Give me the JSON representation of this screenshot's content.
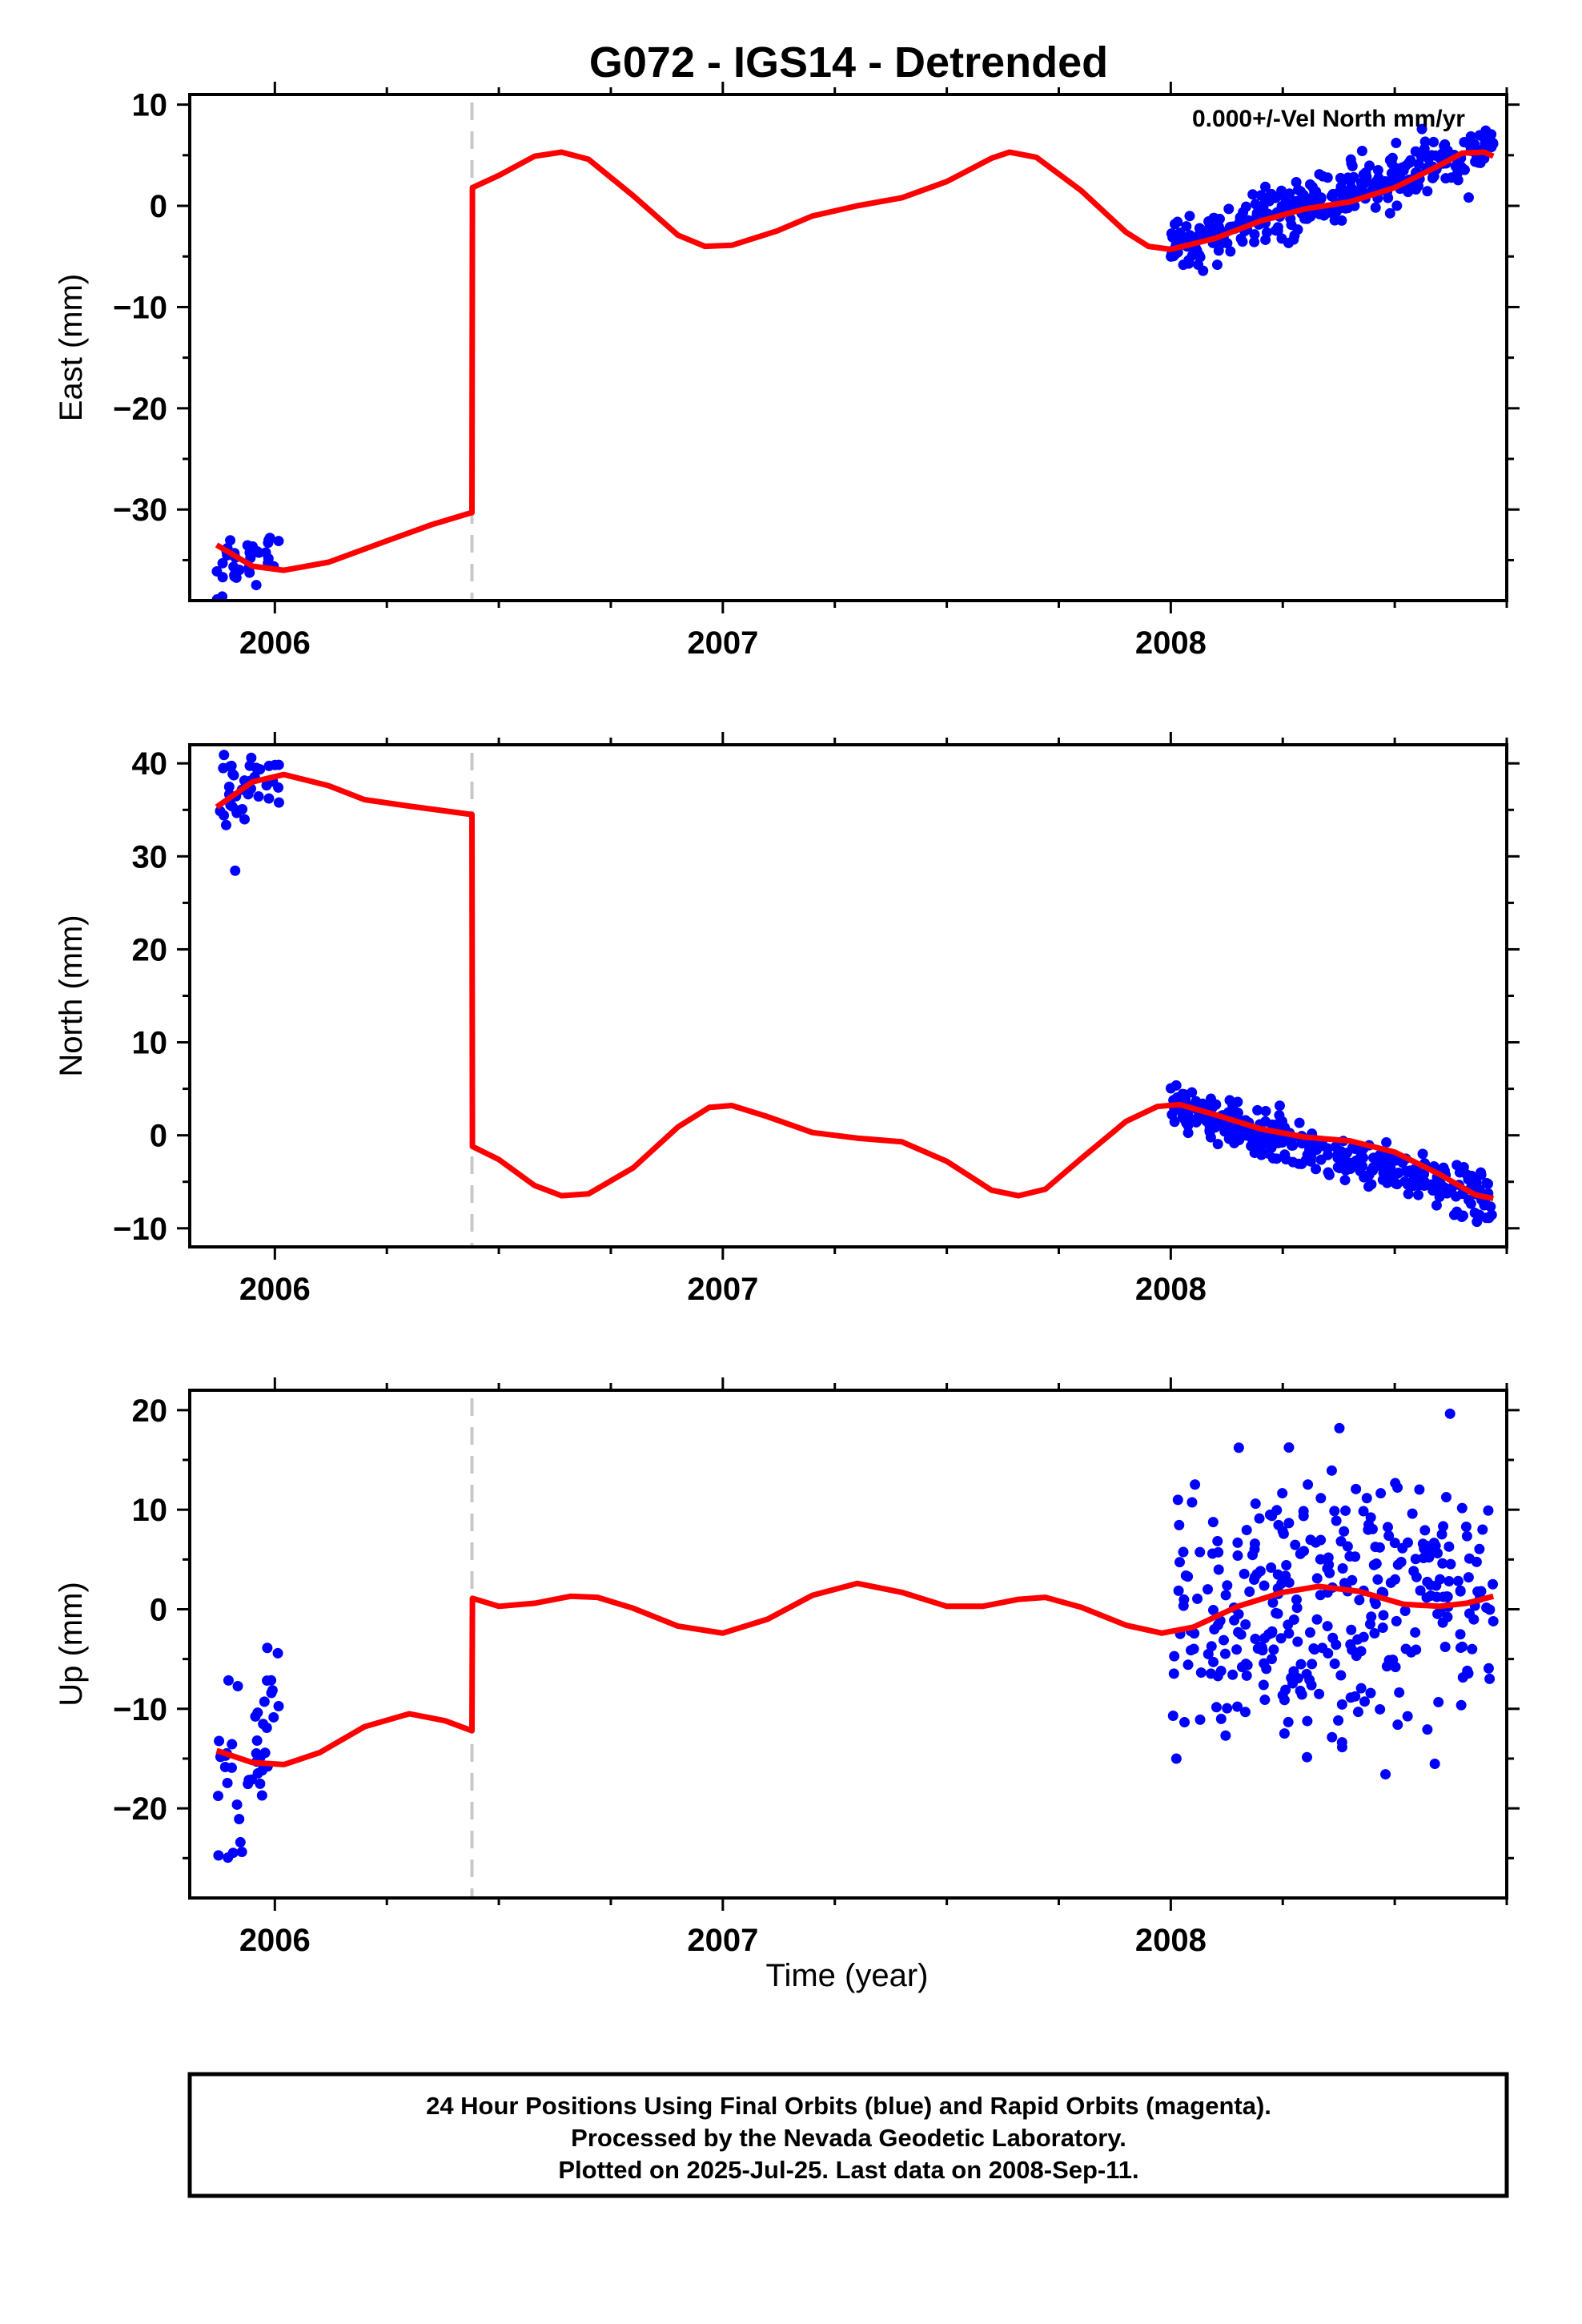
{
  "title": "G072 - IGS14 - Detrended",
  "annotation": "0.000+/-Vel North mm/yr",
  "xlabel": "Time (year)",
  "footer": {
    "line1": "24 Hour Positions Using Final Orbits (blue) and Rapid Orbits (magenta).",
    "line2": "Processed by the Nevada Geodetic Laboratory.",
    "line3": "Plotted on 2025-Jul-25. Last data on 2008-Sep-11."
  },
  "colors": {
    "data": "#0000ff",
    "fit": "#ff0000",
    "gap": "#c8c8c8"
  },
  "chart_data": [
    {
      "type": "scatter",
      "ylabel": "East (mm)",
      "xlim": [
        2005.81,
        2008.75
      ],
      "ylim": [
        -39,
        11
      ],
      "xticks": [
        2006,
        2007,
        2008
      ],
      "yticks": [
        10,
        0,
        -10,
        -20,
        -30
      ],
      "gap_marker_x": 2006.44,
      "fit": [
        [
          2005.87,
          -33.5
        ],
        [
          2005.95,
          -35.6
        ],
        [
          2006.02,
          -36.0
        ],
        [
          2006.12,
          -35.2
        ],
        [
          2006.25,
          -33.1
        ],
        [
          2006.35,
          -31.5
        ],
        [
          2006.44,
          -30.3
        ],
        [
          2006.441,
          1.8
        ],
        [
          2006.5,
          3.0
        ],
        [
          2006.58,
          4.9
        ],
        [
          2006.64,
          5.3
        ],
        [
          2006.7,
          4.6
        ],
        [
          2006.8,
          1.0
        ],
        [
          2006.9,
          -2.9
        ],
        [
          2006.96,
          -4.0
        ],
        [
          2007.02,
          -3.9
        ],
        [
          2007.12,
          -2.5
        ],
        [
          2007.2,
          -1.0
        ],
        [
          2007.3,
          0.0
        ],
        [
          2007.4,
          0.8
        ],
        [
          2007.5,
          2.4
        ],
        [
          2007.6,
          4.7
        ],
        [
          2007.64,
          5.3
        ],
        [
          2007.7,
          4.8
        ],
        [
          2007.8,
          1.5
        ],
        [
          2007.9,
          -2.6
        ],
        [
          2007.95,
          -4.0
        ],
        [
          2008.0,
          -4.3
        ],
        [
          2008.1,
          -3.2
        ],
        [
          2008.2,
          -1.5
        ],
        [
          2008.3,
          -0.3
        ],
        [
          2008.4,
          0.4
        ],
        [
          2008.5,
          1.8
        ],
        [
          2008.6,
          4.0
        ],
        [
          2008.65,
          5.2
        ],
        [
          2008.7,
          5.3
        ],
        [
          2008.72,
          4.9
        ]
      ],
      "clusters": [
        {
          "x0": 2005.87,
          "x1": 2006.01,
          "y0": -36.5,
          "y1": -33.5,
          "s": 1.5,
          "n": 36
        },
        {
          "x0": 2008.0,
          "x1": 2008.72,
          "y0": -4.0,
          "y1": 6.0,
          "s": 1.3,
          "n": 360
        }
      ]
    },
    {
      "type": "scatter",
      "ylabel": "North (mm)",
      "xlim": [
        2005.81,
        2008.75
      ],
      "ylim": [
        -12,
        42
      ],
      "xticks": [
        2006,
        2007,
        2008
      ],
      "yticks": [
        40,
        30,
        20,
        10,
        0,
        -10
      ],
      "gap_marker_x": 2006.44,
      "fit": [
        [
          2005.87,
          35.3
        ],
        [
          2005.95,
          38.0
        ],
        [
          2006.02,
          38.8
        ],
        [
          2006.12,
          37.6
        ],
        [
          2006.2,
          36.1
        ],
        [
          2006.3,
          35.4
        ],
        [
          2006.44,
          34.5
        ],
        [
          2006.441,
          -1.2
        ],
        [
          2006.5,
          -2.6
        ],
        [
          2006.58,
          -5.4
        ],
        [
          2006.64,
          -6.5
        ],
        [
          2006.7,
          -6.3
        ],
        [
          2006.8,
          -3.5
        ],
        [
          2006.9,
          0.9
        ],
        [
          2006.97,
          3.0
        ],
        [
          2007.02,
          3.2
        ],
        [
          2007.1,
          2.0
        ],
        [
          2007.2,
          0.3
        ],
        [
          2007.3,
          -0.3
        ],
        [
          2007.4,
          -0.7
        ],
        [
          2007.5,
          -2.8
        ],
        [
          2007.6,
          -5.9
        ],
        [
          2007.66,
          -6.5
        ],
        [
          2007.72,
          -5.8
        ],
        [
          2007.8,
          -2.5
        ],
        [
          2007.9,
          1.5
        ],
        [
          2007.97,
          3.1
        ],
        [
          2008.02,
          3.3
        ],
        [
          2008.1,
          2.2
        ],
        [
          2008.2,
          0.7
        ],
        [
          2008.3,
          -0.2
        ],
        [
          2008.4,
          -0.6
        ],
        [
          2008.5,
          -1.8
        ],
        [
          2008.6,
          -4.2
        ],
        [
          2008.68,
          -6.4
        ],
        [
          2008.72,
          -6.8
        ]
      ],
      "clusters": [
        {
          "x0": 2005.87,
          "x1": 2006.01,
          "y0": 36.5,
          "y1": 38.5,
          "s": 1.8,
          "n": 40
        },
        {
          "x0": 2008.0,
          "x1": 2008.72,
          "y0": 3.2,
          "y1": -7.0,
          "s": 1.2,
          "n": 360
        }
      ]
    },
    {
      "type": "scatter",
      "ylabel": "Up (mm)",
      "xlim": [
        2005.81,
        2008.75
      ],
      "ylim": [
        -29,
        22
      ],
      "xticks": [
        2006,
        2007,
        2008
      ],
      "yticks": [
        20,
        10,
        0,
        -10,
        -20
      ],
      "gap_marker_x": 2006.44,
      "fit": [
        [
          2005.87,
          -14.2
        ],
        [
          2005.95,
          -15.4
        ],
        [
          2006.02,
          -15.6
        ],
        [
          2006.1,
          -14.4
        ],
        [
          2006.2,
          -11.8
        ],
        [
          2006.3,
          -10.5
        ],
        [
          2006.38,
          -11.2
        ],
        [
          2006.44,
          -12.2
        ],
        [
          2006.441,
          1.1
        ],
        [
          2006.5,
          0.3
        ],
        [
          2006.58,
          0.6
        ],
        [
          2006.66,
          1.3
        ],
        [
          2006.72,
          1.2
        ],
        [
          2006.8,
          0.1
        ],
        [
          2006.9,
          -1.7
        ],
        [
          2007.0,
          -2.4
        ],
        [
          2007.1,
          -1.0
        ],
        [
          2007.2,
          1.4
        ],
        [
          2007.3,
          2.6
        ],
        [
          2007.4,
          1.7
        ],
        [
          2007.5,
          0.3
        ],
        [
          2007.58,
          0.3
        ],
        [
          2007.66,
          1.0
        ],
        [
          2007.72,
          1.2
        ],
        [
          2007.8,
          0.2
        ],
        [
          2007.9,
          -1.6
        ],
        [
          2007.98,
          -2.4
        ],
        [
          2008.05,
          -1.8
        ],
        [
          2008.15,
          0.3
        ],
        [
          2008.25,
          1.7
        ],
        [
          2008.33,
          2.3
        ],
        [
          2008.42,
          1.8
        ],
        [
          2008.52,
          0.5
        ],
        [
          2008.6,
          0.3
        ],
        [
          2008.66,
          0.6
        ],
        [
          2008.72,
          1.3
        ]
      ],
      "clusters": [
        {
          "x0": 2005.87,
          "x1": 2006.01,
          "y0": -19.0,
          "y1": -9.0,
          "s": 5.0,
          "n": 45
        },
        {
          "x0": 2008.0,
          "x1": 2008.72,
          "y0": -1.0,
          "y1": 1.5,
          "s": 6.5,
          "n": 330
        }
      ]
    }
  ]
}
